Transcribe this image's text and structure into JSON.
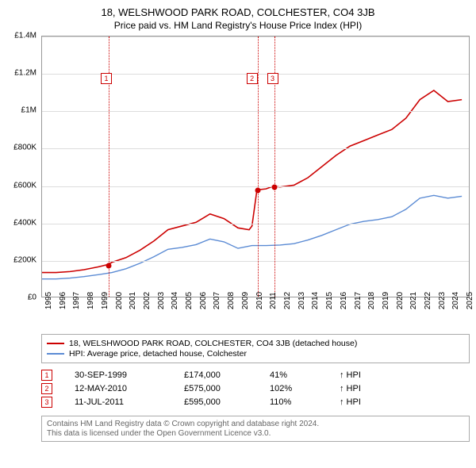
{
  "title": "18, WELSHWOOD PARK ROAD, COLCHESTER, CO4 3JB",
  "subtitle": "Price paid vs. HM Land Registry's House Price Index (HPI)",
  "chart": {
    "type": "line",
    "ylim": [
      0,
      1400000
    ],
    "yticks": [
      0,
      200000,
      400000,
      600000,
      800000,
      1000000,
      1200000,
      1400000
    ],
    "ytick_labels": [
      "£0",
      "£200K",
      "£400K",
      "£600K",
      "£800K",
      "£1M",
      "£1.2M",
      "£1.4M"
    ],
    "xlim": [
      1995,
      2025.5
    ],
    "xticks": [
      1995,
      1996,
      1997,
      1998,
      1999,
      2000,
      2001,
      2002,
      2003,
      2004,
      2005,
      2006,
      2007,
      2008,
      2009,
      2010,
      2011,
      2012,
      2013,
      2014,
      2015,
      2016,
      2017,
      2018,
      2019,
      2020,
      2021,
      2022,
      2023,
      2024,
      2025
    ],
    "background_color": "#ffffff",
    "grid_color": "#dddddd",
    "axis_color": "#999999",
    "marker_border": "#cc0000",
    "series": [
      {
        "name": "price_paid",
        "label": "18, WELSHWOOD PARK ROAD, COLCHESTER, CO4 3JB (detached house)",
        "color": "#cc0000",
        "line_width": 1.6,
        "data": [
          [
            1995,
            130000
          ],
          [
            1996,
            130000
          ],
          [
            1997,
            135000
          ],
          [
            1998,
            145000
          ],
          [
            1999,
            160000
          ],
          [
            1999.75,
            174000
          ],
          [
            2000,
            185000
          ],
          [
            2001,
            210000
          ],
          [
            2002,
            250000
          ],
          [
            2003,
            300000
          ],
          [
            2004,
            360000
          ],
          [
            2005,
            380000
          ],
          [
            2006,
            400000
          ],
          [
            2007,
            445000
          ],
          [
            2008,
            420000
          ],
          [
            2009,
            370000
          ],
          [
            2009.8,
            360000
          ],
          [
            2010.0,
            380000
          ],
          [
            2010.36,
            575000
          ],
          [
            2011,
            580000
          ],
          [
            2011.53,
            595000
          ],
          [
            2012,
            590000
          ],
          [
            2013,
            600000
          ],
          [
            2014,
            640000
          ],
          [
            2015,
            700000
          ],
          [
            2016,
            760000
          ],
          [
            2017,
            810000
          ],
          [
            2018,
            840000
          ],
          [
            2019,
            870000
          ],
          [
            2020,
            900000
          ],
          [
            2021,
            960000
          ],
          [
            2022,
            1060000
          ],
          [
            2023,
            1110000
          ],
          [
            2024,
            1050000
          ],
          [
            2025,
            1060000
          ]
        ]
      },
      {
        "name": "hpi",
        "label": "HPI: Average price, detached house, Colchester",
        "color": "#5b8bd4",
        "line_width": 1.4,
        "data": [
          [
            1995,
            95000
          ],
          [
            1996,
            95000
          ],
          [
            1997,
            100000
          ],
          [
            1998,
            108000
          ],
          [
            1999,
            118000
          ],
          [
            2000,
            130000
          ],
          [
            2001,
            150000
          ],
          [
            2002,
            180000
          ],
          [
            2003,
            215000
          ],
          [
            2004,
            255000
          ],
          [
            2005,
            265000
          ],
          [
            2006,
            280000
          ],
          [
            2007,
            310000
          ],
          [
            2008,
            295000
          ],
          [
            2009,
            260000
          ],
          [
            2010,
            275000
          ],
          [
            2011,
            275000
          ],
          [
            2012,
            278000
          ],
          [
            2013,
            285000
          ],
          [
            2014,
            305000
          ],
          [
            2015,
            330000
          ],
          [
            2016,
            360000
          ],
          [
            2017,
            390000
          ],
          [
            2018,
            405000
          ],
          [
            2019,
            415000
          ],
          [
            2020,
            430000
          ],
          [
            2021,
            470000
          ],
          [
            2022,
            530000
          ],
          [
            2023,
            545000
          ],
          [
            2024,
            530000
          ],
          [
            2025,
            540000
          ]
        ]
      }
    ],
    "markers": [
      {
        "n": "1",
        "x": 1999.75,
        "y": 174000,
        "label_xy_pct": [
          15.0,
          14
        ]
      },
      {
        "n": "2",
        "x": 2010.36,
        "y": 575000,
        "label_xy_pct": [
          49.0,
          14
        ]
      },
      {
        "n": "3",
        "x": 2011.53,
        "y": 595000,
        "label_xy_pct": [
          53.8,
          14
        ]
      }
    ],
    "dot_color": "#cc0000"
  },
  "legend": {
    "items": [
      {
        "color": "#cc0000",
        "label_path": "chart.series.0.label"
      },
      {
        "color": "#5b8bd4",
        "label_path": "chart.series.1.label"
      }
    ]
  },
  "events": [
    {
      "n": "1",
      "date": "30-SEP-1999",
      "price": "£174,000",
      "pct": "41%",
      "arrow": "↑ HPI"
    },
    {
      "n": "2",
      "date": "12-MAY-2010",
      "price": "£575,000",
      "pct": "102%",
      "arrow": "↑ HPI"
    },
    {
      "n": "3",
      "date": "11-JUL-2011",
      "price": "£595,000",
      "pct": "110%",
      "arrow": "↑ HPI"
    }
  ],
  "footer": {
    "line1": "Contains HM Land Registry data © Crown copyright and database right 2024.",
    "line2": "This data is licensed under the Open Government Licence v3.0."
  }
}
